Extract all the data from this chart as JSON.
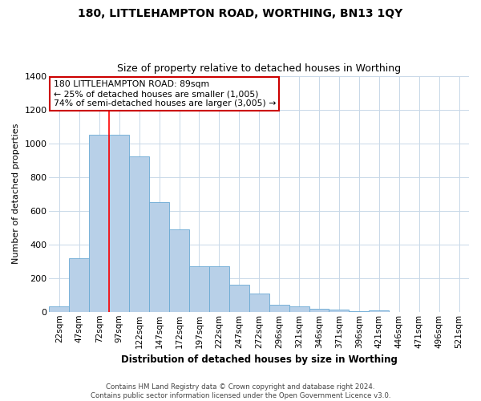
{
  "title": "180, LITTLEHAMPTON ROAD, WORTHING, BN13 1QY",
  "subtitle": "Size of property relative to detached houses in Worthing",
  "xlabel": "Distribution of detached houses by size in Worthing",
  "ylabel": "Number of detached properties",
  "footer_line1": "Contains HM Land Registry data © Crown copyright and database right 2024.",
  "footer_line2": "Contains public sector information licensed under the Open Government Licence v3.0.",
  "bar_labels": [
    "22sqm",
    "47sqm",
    "72sqm",
    "97sqm",
    "122sqm",
    "147sqm",
    "172sqm",
    "197sqm",
    "222sqm",
    "247sqm",
    "272sqm",
    "296sqm",
    "321sqm",
    "346sqm",
    "371sqm",
    "396sqm",
    "421sqm",
    "446sqm",
    "471sqm",
    "496sqm",
    "521sqm"
  ],
  "bar_values": [
    30,
    320,
    1050,
    1050,
    920,
    650,
    490,
    270,
    270,
    160,
    110,
    40,
    30,
    20,
    15,
    5,
    10,
    0,
    0,
    0,
    0
  ],
  "bar_color": "#b8d0e8",
  "bar_edge_color": "#6aaad4",
  "grid_color": "#c8d8e8",
  "red_line_x": 2.5,
  "annotation_text": "180 LITTLEHAMPTON ROAD: 89sqm\n← 25% of detached houses are smaller (1,005)\n74% of semi-detached houses are larger (3,005) →",
  "annotation_box_color": "#ffffff",
  "annotation_box_edge_color": "#cc0000",
  "ylim": [
    0,
    1400
  ],
  "yticks": [
    0,
    200,
    400,
    600,
    800,
    1000,
    1200,
    1400
  ]
}
